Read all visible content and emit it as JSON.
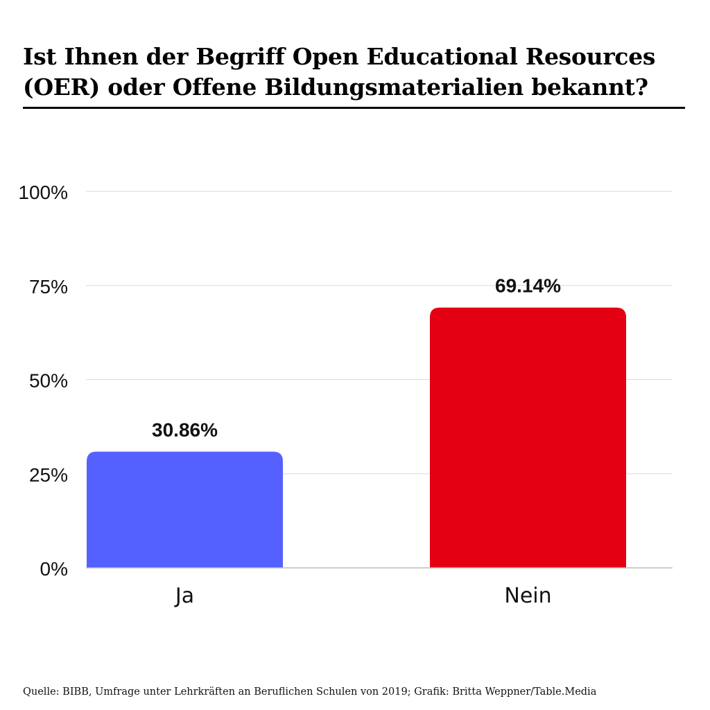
{
  "chart_data": {
    "type": "bar",
    "title": "Ist Ihnen der Begriff Open Educational Resources (OER) oder Offene Bildungsmaterialien bekannt?",
    "categories": [
      "Ja",
      "Nein"
    ],
    "values": [
      30.86,
      69.14
    ],
    "data_labels": [
      "30.86%",
      "69.14%"
    ],
    "colors": [
      "#5461ff",
      "#e30013"
    ],
    "ylim": [
      0,
      100
    ],
    "yticks": [
      0,
      25,
      50,
      75,
      100
    ],
    "ytick_labels": [
      "0%",
      "25%",
      "50%",
      "75%",
      "100%"
    ],
    "grid": true,
    "legend": "none"
  },
  "footer": {
    "source": "Quelle: BIBB, Umfrage unter Lehrkräften an Beruflichen Schulen von 2019; Grafik: Britta Weppner/Table.Media"
  }
}
